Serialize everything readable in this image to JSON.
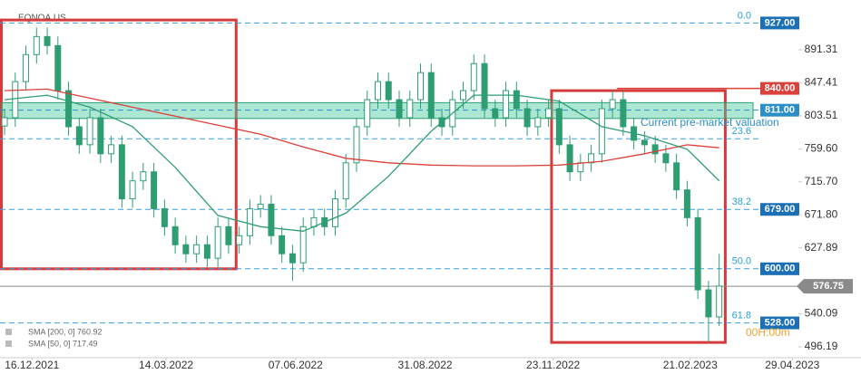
{
  "chart_data": {
    "type": "candlestick",
    "title": "EQNOA.US",
    "x": [
      "28.11.2021",
      "05.12.2021",
      "12.12.2021",
      "19.12.2021",
      "26.12.2021",
      "02.01.2022",
      "09.01.2022",
      "16.01.2022",
      "23.01.2022",
      "30.01.2022",
      "06.02.2022",
      "13.02.2022",
      "20.02.2022",
      "27.02.2022",
      "06.03.2022",
      "13.03.2022",
      "20.03.2022",
      "27.03.2022",
      "03.04.2022",
      "10.04.2022",
      "17.04.2022",
      "24.04.2022",
      "01.05.2022",
      "08.05.2022",
      "15.05.2022",
      "22.05.2022",
      "29.05.2022",
      "05.06.2022",
      "12.06.2022",
      "19.06.2022",
      "26.06.2022",
      "03.07.2022",
      "10.07.2022",
      "17.07.2022",
      "24.07.2022",
      "31.07.2022",
      "07.08.2022",
      "14.08.2022",
      "21.08.2022",
      "28.08.2022",
      "04.09.2022",
      "11.09.2022",
      "18.09.2022",
      "25.09.2022",
      "02.10.2022",
      "09.10.2022",
      "16.10.2022",
      "23.10.2022",
      "30.10.2022",
      "06.11.2022",
      "13.11.2022",
      "20.11.2022",
      "27.11.2022",
      "04.12.2022",
      "11.12.2022",
      "18.12.2022",
      "25.12.2022",
      "01.01.2023",
      "08.01.2023",
      "15.01.2023",
      "22.01.2023",
      "29.01.2023",
      "05.02.2023",
      "12.02.2023",
      "19.02.2023",
      "26.02.2023",
      "05.03.2023",
      "12.03.2023"
    ],
    "open": [
      790,
      801,
      849,
      885,
      909,
      897,
      837,
      789,
      765,
      801,
      753,
      765,
      693,
      717,
      729,
      680,
      656,
      632,
      620,
      632,
      614,
      656,
      632,
      644,
      680,
      686,
      644,
      620,
      608,
      656,
      668,
      656,
      693,
      741,
      789,
      825,
      849,
      825,
      801,
      825,
      861,
      801,
      789,
      825,
      837,
      873,
      813,
      801,
      837,
      813,
      789,
      801,
      813,
      765,
      729,
      741,
      753,
      813,
      825,
      789,
      771,
      765,
      753,
      741,
      705,
      668,
      572,
      536
    ],
    "high": [
      813,
      861,
      897,
      921,
      921,
      909,
      849,
      801,
      813,
      813,
      777,
      777,
      729,
      741,
      741,
      692,
      668,
      644,
      644,
      644,
      668,
      668,
      656,
      692,
      698,
      698,
      656,
      632,
      668,
      680,
      680,
      705,
      753,
      801,
      837,
      861,
      861,
      837,
      837,
      873,
      873,
      813,
      837,
      849,
      885,
      885,
      825,
      849,
      849,
      825,
      813,
      825,
      825,
      777,
      753,
      765,
      825,
      837,
      837,
      801,
      783,
      777,
      765,
      753,
      717,
      680,
      584,
      620
    ],
    "low": [
      778,
      789,
      837,
      873,
      885,
      825,
      777,
      753,
      753,
      741,
      741,
      681,
      681,
      705,
      668,
      644,
      620,
      608,
      608,
      602,
      602,
      620,
      620,
      632,
      668,
      632,
      608,
      584,
      596,
      644,
      644,
      644,
      681,
      729,
      777,
      813,
      813,
      789,
      789,
      813,
      789,
      777,
      777,
      813,
      825,
      801,
      789,
      789,
      801,
      777,
      777,
      789,
      753,
      717,
      717,
      729,
      741,
      801,
      777,
      759,
      753,
      741,
      729,
      693,
      656,
      560,
      502,
      524
    ],
    "close": [
      801,
      849,
      885,
      909,
      897,
      837,
      789,
      765,
      801,
      753,
      765,
      693,
      717,
      729,
      680,
      656,
      632,
      620,
      632,
      614,
      656,
      632,
      644,
      680,
      686,
      644,
      620,
      608,
      656,
      668,
      656,
      693,
      741,
      789,
      825,
      849,
      825,
      801,
      825,
      861,
      801,
      789,
      825,
      837,
      873,
      813,
      801,
      837,
      813,
      789,
      801,
      813,
      765,
      729,
      741,
      753,
      813,
      825,
      789,
      771,
      765,
      753,
      741,
      705,
      668,
      572,
      536,
      577
    ],
    "color": "#2e9e72",
    "xlim": [
      "25.11.2021",
      "03.05.2023"
    ],
    "xticks": [
      "16.12.2021",
      "14.03.2022",
      "07.06.2022",
      "31.08.2022",
      "23.11.2022",
      "21.02.2023",
      "29.04.2023"
    ],
    "ylim": [
      481.7,
      957.6
    ],
    "yticks": [
      496.19,
      540.09,
      627.89,
      {
        "value": 671.8,
        "label": "671.80"
      },
      {
        "value": 715.7,
        "label": "715.70"
      },
      {
        "value": 759.6,
        "label": "759.60"
      },
      803.51,
      847.41,
      891.31
    ],
    "series": [
      {
        "name": "SMA [200, 0] 760.92",
        "color": "#d9413a",
        "x": [
          "28.11.2021",
          "26.12.2021",
          "23.01.2022",
          "20.02.2022",
          "20.03.2022",
          "17.04.2022",
          "15.05.2022",
          "12.06.2022",
          "10.07.2022",
          "07.08.2022",
          "04.09.2022",
          "02.10.2022",
          "30.10.2022",
          "27.11.2022",
          "25.12.2022",
          "22.01.2023",
          "19.02.2023",
          "12.03.2023"
        ],
        "values": [
          837,
          839,
          827,
          815,
          803,
          791,
          779,
          762,
          747,
          741,
          738,
          737,
          737,
          738,
          743,
          753,
          765,
          761
        ]
      },
      {
        "name": "SMA [50, 0] 717.49",
        "color": "#2e9e72",
        "x": [
          "28.11.2021",
          "26.12.2021",
          "23.01.2022",
          "20.02.2022",
          "20.03.2022",
          "17.04.2022",
          "15.05.2022",
          "12.06.2022",
          "10.07.2022",
          "07.08.2022",
          "04.09.2022",
          "02.10.2022",
          "30.10.2022",
          "27.11.2022",
          "25.12.2022",
          "22.01.2023",
          "19.02.2023",
          "12.03.2023"
        ],
        "values": [
          825,
          831,
          815,
          789,
          735,
          671,
          656,
          650,
          674,
          723,
          783,
          831,
          831,
          823,
          789,
          777,
          759,
          717
        ]
      }
    ],
    "levels": [
      {
        "name": "0.0",
        "value": 927,
        "label": "927.00"
      },
      {
        "name": "23.6",
        "value": 773
      },
      {
        "name": "38.2",
        "value": 679,
        "label": "679.00"
      },
      {
        "name": "50.0",
        "value": 600,
        "label": "600.00"
      },
      {
        "name": "61.8",
        "value": 528,
        "label": "528.00"
      }
    ],
    "zone": {
      "low": 800,
      "high": 821,
      "value": 811,
      "label": "811.00",
      "text": "Current pre-market valuation",
      "color": "#48c9a0"
    },
    "resistance": {
      "value": 840,
      "label": "840.00",
      "from": "04.01.2023",
      "color": "#d9413a"
    },
    "last": {
      "value": 576.75,
      "color": "#8a8a8a"
    },
    "boxes": [
      {
        "x": [
          "25.11.2021",
          "29.04.2022"
        ],
        "y": [
          600,
          931
        ]
      },
      {
        "x": [
          "22.11.2022",
          "16.03.2023"
        ],
        "y": [
          502,
          837
        ]
      }
    ],
    "box_color": "#d63b3b",
    "timer": "00H:00m"
  }
}
